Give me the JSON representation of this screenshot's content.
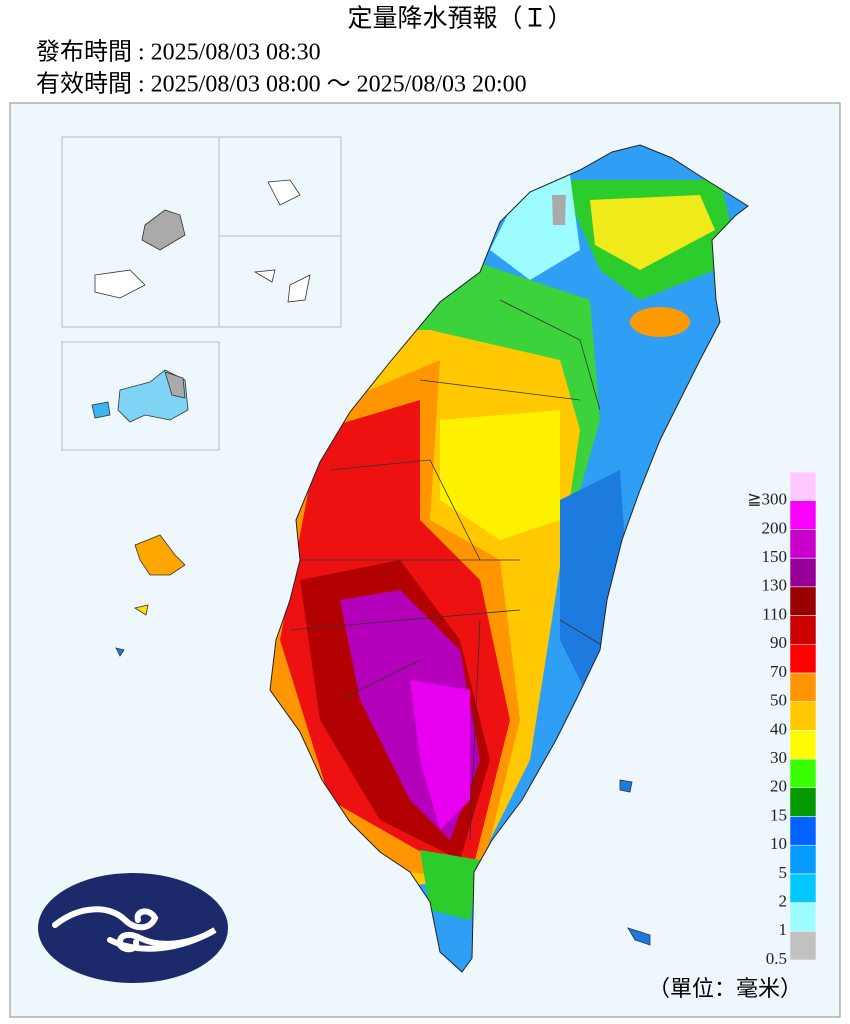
{
  "header": {
    "title": "定量降水預報（Ｉ）",
    "issued": "發布時間 : 2025/08/03 08:30",
    "valid": "有效時間 : 2025/08/03 08:00 ～ 2025/08/03 20:00"
  },
  "legend": {
    "unit": "（單位：毫米）",
    "bins": [
      {
        "label": "0.5",
        "color": "#c1c1c1"
      },
      {
        "label": "1",
        "color": "#9cfcff"
      },
      {
        "label": "2",
        "color": "#03c8ff"
      },
      {
        "label": "5",
        "color": "#059bff"
      },
      {
        "label": "10",
        "color": "#0363ff"
      },
      {
        "label": "15",
        "color": "#059902"
      },
      {
        "label": "20",
        "color": "#39ff03"
      },
      {
        "label": "30",
        "color": "#fffb03"
      },
      {
        "label": "40",
        "color": "#ffc800"
      },
      {
        "label": "50",
        "color": "#ff9500"
      },
      {
        "label": "70",
        "color": "#ff0000"
      },
      {
        "label": "90",
        "color": "#cc0000"
      },
      {
        "label": "110",
        "color": "#990000"
      },
      {
        "label": "130",
        "color": "#960099"
      },
      {
        "label": "150",
        "color": "#c900cc"
      },
      {
        "label": "200",
        "color": "#fb00ff"
      },
      {
        "label": "≧300",
        "color": "#fdc9ff"
      }
    ]
  }
}
